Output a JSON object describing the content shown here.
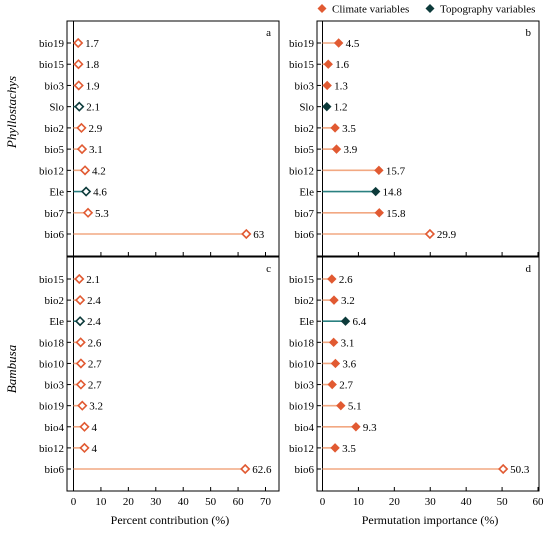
{
  "legend": {
    "items": [
      {
        "label": "Climate variables",
        "color": "#e15a32"
      },
      {
        "label": "Topography variables",
        "color": "#0d3b3b"
      }
    ]
  },
  "rows": [
    {
      "title": "Phyllostachys"
    },
    {
      "title": "Bambusa"
    }
  ],
  "axes": {
    "left_xlabel": "Percent contribution (%)",
    "right_xlabel": "Permutation importance (%)"
  },
  "colors": {
    "climate": "#e15a32",
    "climate_line": "#f2a882",
    "topography": "#0d3b3b",
    "topography_line": "#2a8080"
  },
  "chart_data": [
    {
      "panel": "a",
      "type": "lollipop",
      "xlim": [
        0,
        70
      ],
      "xticks": [
        0,
        10,
        20,
        30,
        40,
        50,
        60,
        70
      ],
      "categories": [
        "bio19",
        "bio15",
        "bio3",
        "Slo",
        "bio2",
        "bio5",
        "bio12",
        "Ele",
        "bio7",
        "bio6"
      ],
      "values": [
        1.7,
        1.8,
        1.9,
        2.1,
        2.9,
        3.1,
        4.2,
        4.6,
        5.3,
        63
      ],
      "labels": [
        "1.7",
        "1.8",
        "1.9",
        "2.1",
        "2.9",
        "3.1",
        "4.2",
        "4.6",
        "5.3",
        "63"
      ],
      "groups": [
        "climate",
        "climate",
        "climate",
        "topography",
        "climate",
        "climate",
        "climate",
        "topography",
        "climate",
        "climate"
      ],
      "show_xticklabels": false
    },
    {
      "panel": "b",
      "type": "lollipop",
      "xlim": [
        0,
        60
      ],
      "xticks": [
        0,
        10,
        20,
        30,
        40,
        50,
        60
      ],
      "categories": [
        "bio19",
        "bio15",
        "bio3",
        "Slo",
        "bio2",
        "bio5",
        "bio12",
        "Ele",
        "bio7",
        "bio6"
      ],
      "values": [
        4.5,
        1.6,
        1.3,
        1.2,
        3.5,
        3.9,
        15.7,
        14.8,
        15.8,
        29.9
      ],
      "labels": [
        "4.5",
        "1.6",
        "1.3",
        "1.2",
        "3.5",
        "3.9",
        "15.7",
        "14.8",
        "15.8",
        "29.9"
      ],
      "groups": [
        "climate",
        "climate",
        "climate",
        "topography",
        "climate",
        "climate",
        "climate",
        "topography",
        "climate",
        "climate"
      ],
      "show_xticklabels": false
    },
    {
      "panel": "c",
      "type": "lollipop",
      "xlim": [
        0,
        70
      ],
      "xticks": [
        0,
        10,
        20,
        30,
        40,
        50,
        60,
        70
      ],
      "xticklabels": [
        "0",
        "10",
        "20",
        "30",
        "40",
        "50",
        "60",
        "70"
      ],
      "categories": [
        "bio15",
        "bio2",
        "Ele",
        "bio18",
        "bio10",
        "bio3",
        "bio19",
        "bio4",
        "bio12",
        "bio6"
      ],
      "values": [
        2.1,
        2.4,
        2.4,
        2.6,
        2.7,
        2.7,
        3.2,
        4,
        4,
        62.6
      ],
      "labels": [
        "2.1",
        "2.4",
        "2.4",
        "2.6",
        "2.7",
        "2.7",
        "3.2",
        "4",
        "4",
        "62.6"
      ],
      "groups": [
        "climate",
        "climate",
        "topography",
        "climate",
        "climate",
        "climate",
        "climate",
        "climate",
        "climate",
        "climate"
      ],
      "show_xticklabels": true
    },
    {
      "panel": "d",
      "type": "lollipop",
      "xlim": [
        0,
        60
      ],
      "xticks": [
        0,
        10,
        20,
        30,
        40,
        50,
        60
      ],
      "xticklabels": [
        "0",
        "10",
        "20",
        "30",
        "40",
        "50",
        "60"
      ],
      "categories": [
        "bio15",
        "bio2",
        "Ele",
        "bio18",
        "bio10",
        "bio3",
        "bio19",
        "bio4",
        "bio12",
        "bio6"
      ],
      "values": [
        2.6,
        3.2,
        6.4,
        3.1,
        3.6,
        2.7,
        5.1,
        9.3,
        3.5,
        50.3
      ],
      "labels": [
        "2.6",
        "3.2",
        "6.4",
        "3.1",
        "3.6",
        "2.7",
        "5.1",
        "9.3",
        "3.5",
        "50.3"
      ],
      "groups": [
        "climate",
        "climate",
        "topography",
        "climate",
        "climate",
        "climate",
        "climate",
        "climate",
        "climate",
        "climate"
      ],
      "show_xticklabels": true
    }
  ]
}
